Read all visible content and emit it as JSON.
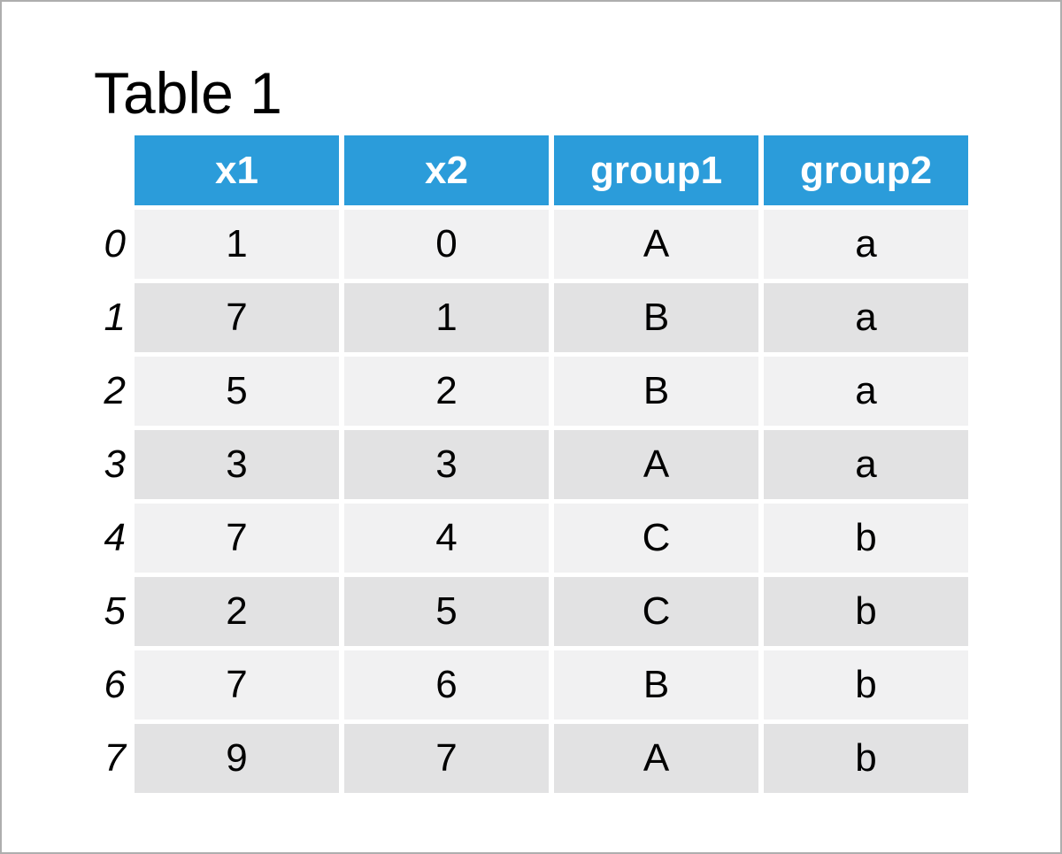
{
  "chart_data": {
    "type": "table",
    "title": "Table 1",
    "columns": [
      "x1",
      "x2",
      "group1",
      "group2"
    ],
    "index": [
      "0",
      "1",
      "2",
      "3",
      "4",
      "5",
      "6",
      "7"
    ],
    "rows": [
      [
        "1",
        "0",
        "A",
        "a"
      ],
      [
        "7",
        "1",
        "B",
        "a"
      ],
      [
        "5",
        "2",
        "B",
        "a"
      ],
      [
        "3",
        "3",
        "A",
        "a"
      ],
      [
        "7",
        "4",
        "C",
        "b"
      ],
      [
        "2",
        "5",
        "C",
        "b"
      ],
      [
        "7",
        "6",
        "B",
        "b"
      ],
      [
        "9",
        "7",
        "A",
        "b"
      ]
    ]
  },
  "colors": {
    "header_bg": "#2b9cda",
    "row_light": "#f1f1f2",
    "row_dark": "#e2e2e3",
    "frame_border": "#aeaeae",
    "header_text": "#ffffff",
    "body_text": "#000000"
  }
}
